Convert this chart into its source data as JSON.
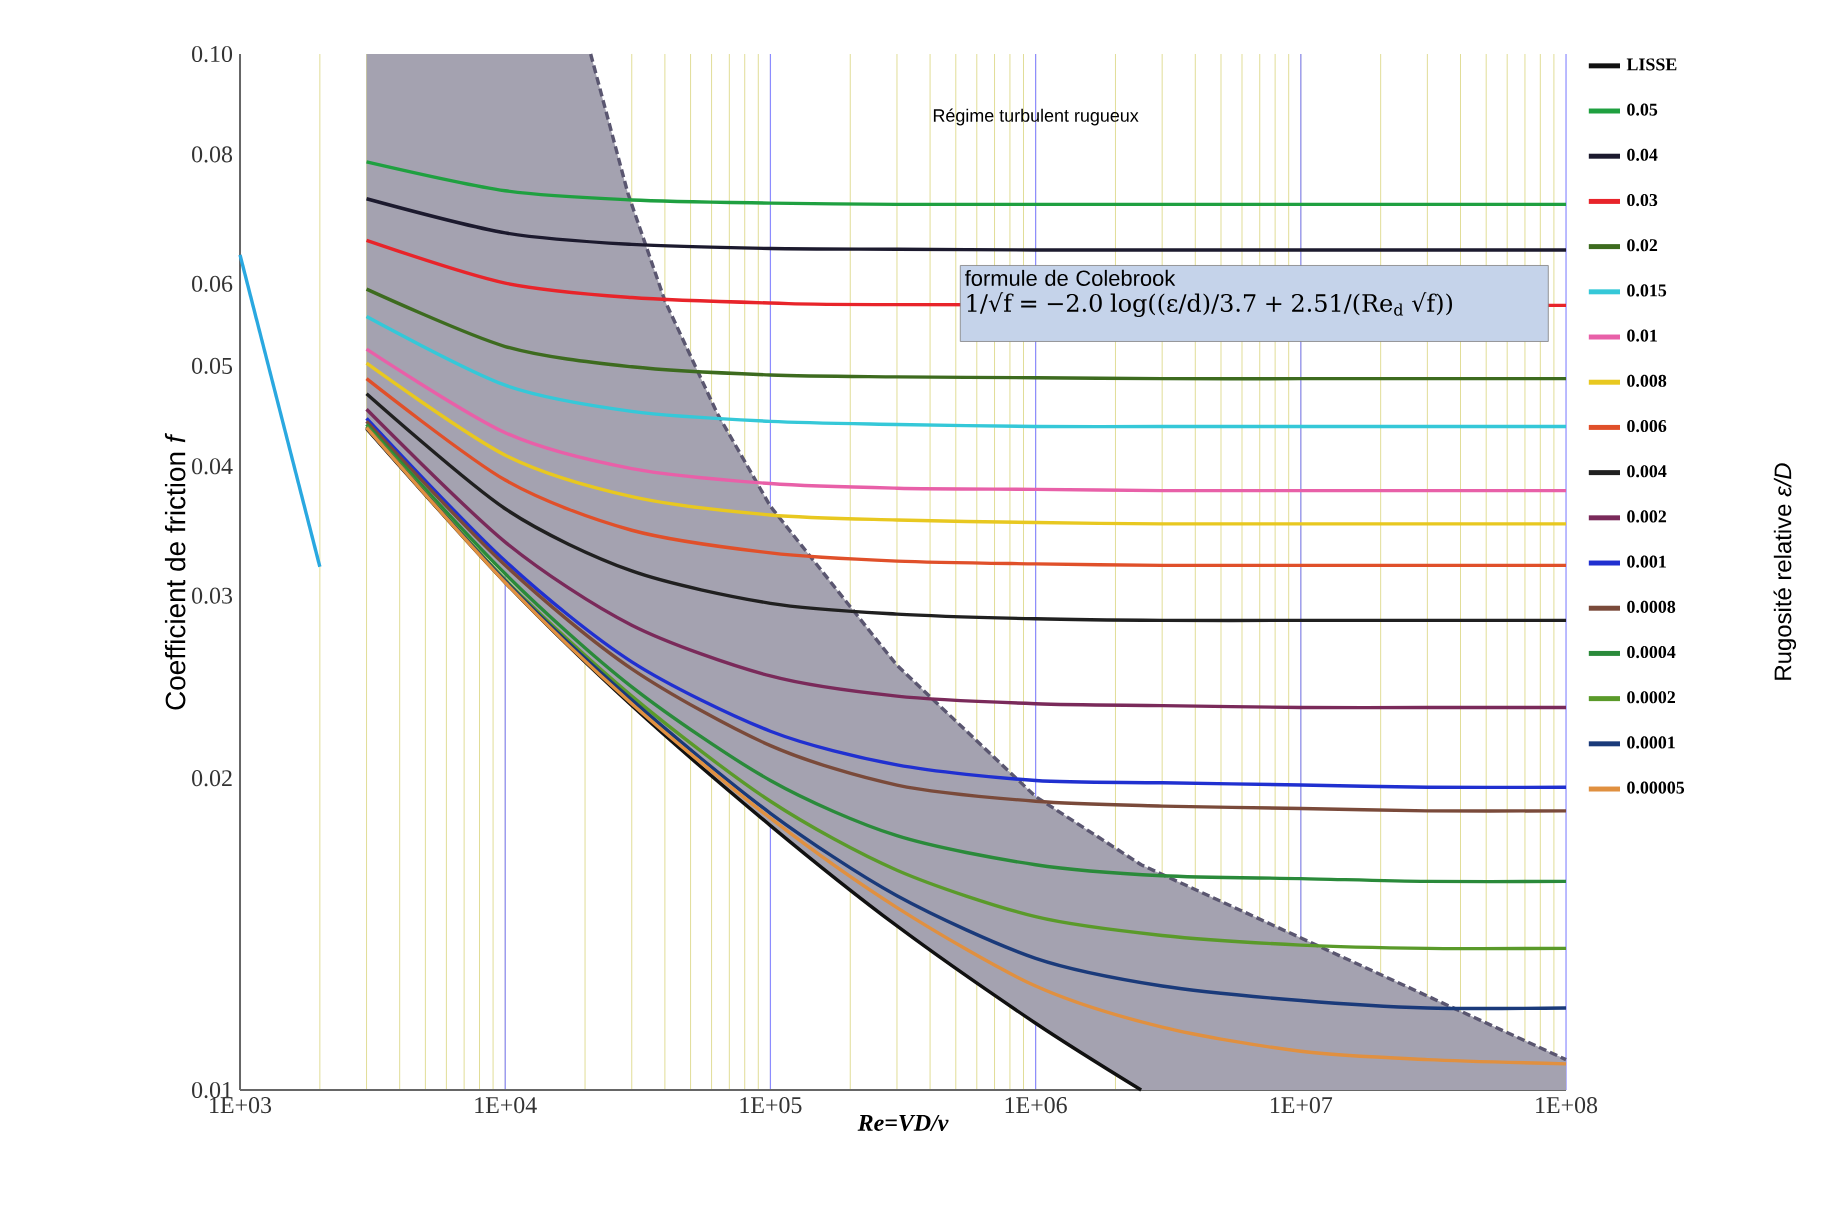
{
  "chart_data": {
    "type": "line",
    "xlabel": "Re=VD/ν",
    "ylabel": "Coefficient de friction *f*",
    "annotations": [
      "Régime turbulent rugueux",
      "formule de Colebrook",
      "1/√f = −2.0 log((ε/d)/3.7 + 2.51/(Re$_{d}$ √f))",
      "Rugosité relative *ε/D*"
    ],
    "log": "xy",
    "grid": "x",
    "legend": "right",
    "xlim": [
      1000,
      100000000
    ],
    "ylim": [
      0.01,
      0.1
    ],
    "xticks": [
      {
        "value": 1000,
        "label": "1E+03"
      },
      {
        "value": 10000,
        "label": "1E+04"
      },
      {
        "value": 100000,
        "label": "1E+05"
      },
      {
        "value": 1000000,
        "label": "1E+06"
      },
      {
        "value": 10000000,
        "label": "1E+07"
      },
      {
        "value": 100000000,
        "label": "1E+08"
      }
    ],
    "yticks": [
      0.01,
      0.02,
      0.03,
      0.04,
      0.05,
      0.06,
      0.08,
      {
        "value": 0.1,
        "label": "0.10"
      }
    ],
    "x": [
      3000,
      10000,
      30000,
      100000,
      300000,
      1000000,
      3000000,
      10000000,
      30000000,
      100000000
    ],
    "series": [
      {
        "color": "#5a5670",
        "line_style": "dashed",
        "x": [
          3000,
          21000,
          29000,
          40000,
          63000,
          100000,
          300000,
          1000000,
          2500000,
          100000000
        ],
        "values": [
          null,
          0.1,
          0.0734,
          0.0578,
          0.045,
          0.0366,
          0.0257,
          0.0192,
          0.0165,
          0.0107
        ],
        "upper": [
          0.1,
          0.1,
          0.0734,
          0.0578,
          0.045,
          0.0366,
          0.0257,
          0.0192,
          0.0165,
          0.0107
        ],
        "lower": [
          0.0435,
          0.0256,
          0.0237,
          0.0221,
          0.0199,
          0.018,
          0.0144,
          0.0116,
          0.01,
          0.01
        ]
      },
      {
        "color": "#2aa8e0",
        "x": [
          1000,
          2000
        ],
        "values": [
          0.064,
          0.032
        ]
      },
      {
        "name": "LISSE",
        "color": "#111111",
        "x": [
          3000,
          10000,
          30000,
          100000,
          300000,
          1000000,
          2500000
        ],
        "values": [
          0.0435,
          0.0309,
          0.0235,
          0.018,
          0.0144,
          0.0116,
          0.01
        ]
      },
      {
        "name": "0.05",
        "color": "#1fa040",
        "values": [
          0.0787,
          0.0738,
          0.0723,
          0.0718,
          0.0716,
          0.0716,
          0.0716,
          0.0716,
          0.0716,
          0.0716
        ]
      },
      {
        "name": "0.04",
        "color": "#1c1a2e",
        "values": [
          0.0725,
          0.0672,
          0.0655,
          0.0649,
          0.0648,
          0.0647,
          0.0647,
          0.0647,
          0.0647,
          0.0647
        ]
      },
      {
        "name": "0.03",
        "color": "#e8242a",
        "values": [
          0.0661,
          0.0601,
          0.0582,
          0.0575,
          0.0573,
          null,
          null,
          null,
          null,
          0.0572
        ]
      },
      {
        "name": "0.02",
        "color": "#3d6b1f",
        "values": [
          0.0593,
          0.0522,
          0.0499,
          0.049,
          0.0488,
          0.0487,
          0.0486,
          0.0486,
          0.0486,
          0.0486
        ]
      },
      {
        "name": "0.015",
        "color": "#35c8d8",
        "values": [
          0.0558,
          0.0479,
          0.0452,
          0.0442,
          0.0439,
          0.0437,
          0.0437,
          0.0437,
          0.0437,
          0.0437
        ]
      },
      {
        "name": "0.01",
        "color": "#e860a8",
        "values": [
          0.0519,
          0.0431,
          0.0398,
          0.0385,
          0.0381,
          0.038,
          0.0379,
          0.0379,
          0.0379,
          0.0379
        ]
      },
      {
        "name": "0.008",
        "color": "#e8c820",
        "values": [
          0.0503,
          0.041,
          0.0374,
          0.0359,
          0.0355,
          0.0353,
          0.0352,
          0.0352,
          0.0352,
          0.0352
        ]
      },
      {
        "name": "0.006",
        "color": "#e0502a",
        "values": [
          0.0486,
          0.0388,
          0.0347,
          0.033,
          0.0324,
          0.0322,
          0.0321,
          0.0321,
          0.0321,
          0.0321
        ]
      },
      {
        "name": "0.004",
        "color": "#202020",
        "values": [
          0.047,
          0.0364,
          0.0317,
          0.0295,
          0.0288,
          0.0285,
          0.0284,
          0.0284,
          0.0284,
          0.0284
        ]
      },
      {
        "name": "0.002",
        "color": "#7a2a5a",
        "values": [
          0.0454,
          0.0338,
          0.0281,
          0.0251,
          0.024,
          0.0236,
          0.0235,
          0.0234,
          0.0234,
          0.0234
        ]
      },
      {
        "name": "0.001",
        "color": "#2030d0",
        "values": [
          0.0445,
          0.0324,
          0.0259,
          0.0222,
          0.0206,
          0.0199,
          0.0198,
          0.0197,
          0.0196,
          0.0196
        ]
      },
      {
        "name": "0.0008",
        "color": "#7a4a3a",
        "values": [
          0.0442,
          0.0321,
          0.0255,
          0.0215,
          0.0197,
          0.019,
          0.0188,
          0.0187,
          0.0186,
          0.0186
        ]
      },
      {
        "name": "0.0004",
        "color": "#2a8a3a",
        "values": [
          0.0439,
          0.0315,
          0.0245,
          0.0199,
          0.0176,
          0.0165,
          0.0161,
          0.016,
          0.0159,
          0.0159
        ]
      },
      {
        "name": "0.0002",
        "color": "#5a9a2a",
        "values": [
          0.0437,
          0.0311,
          0.024,
          0.019,
          0.0163,
          0.0147,
          0.0141,
          0.0138,
          0.0137,
          0.0137
        ]
      },
      {
        "name": "0.0001",
        "color": "#1a3a7a",
        "values": [
          0.0436,
          0.031,
          0.0238,
          0.0185,
          0.0154,
          0.0134,
          0.0126,
          0.0122,
          0.012,
          0.012
        ]
      },
      {
        "name": "0.00005",
        "color": "#e09040",
        "values": [
          0.0436,
          0.0309,
          0.0236,
          0.0183,
          0.015,
          0.0126,
          0.0115,
          0.0109,
          0.0107,
          0.0106
        ]
      }
    ]
  }
}
